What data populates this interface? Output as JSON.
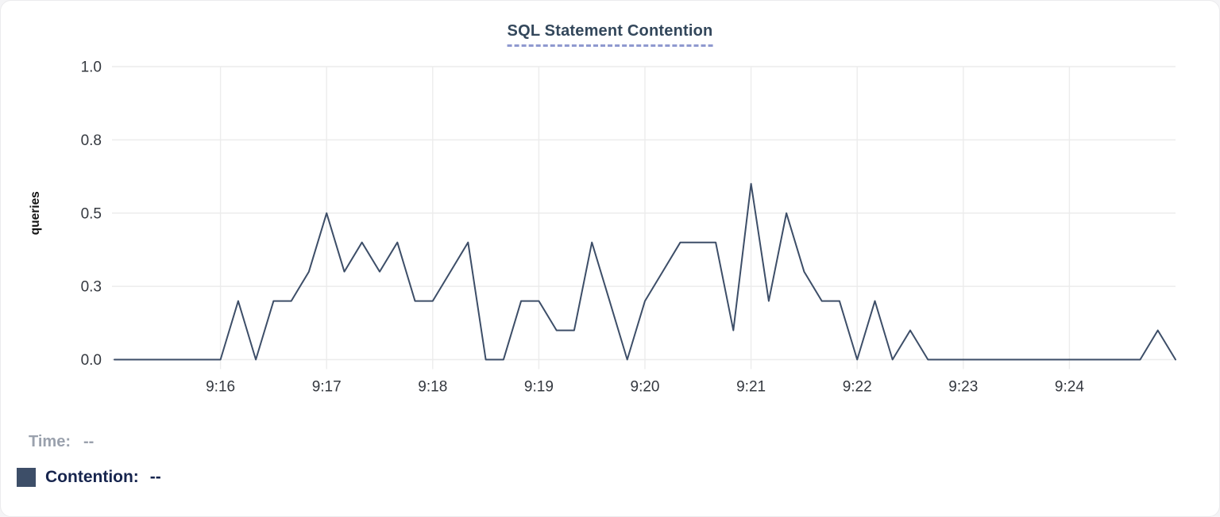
{
  "title": "SQL Statement Contention",
  "chart_data": {
    "type": "line",
    "title": "SQL Statement Contention",
    "xlabel": "",
    "ylabel": "queries",
    "ylim": [
      0,
      1.0
    ],
    "grid": true,
    "legend_position": "bottom-left",
    "y_ticks": [
      {
        "label": "0.0",
        "value": 0
      },
      {
        "label": "0.3",
        "value": 0.25
      },
      {
        "label": "0.5",
        "value": 0.5
      },
      {
        "label": "0.8",
        "value": 0.75
      },
      {
        "label": "1.0",
        "value": 1
      }
    ],
    "x_ticks": [
      {
        "label": "9:16",
        "index": 6
      },
      {
        "label": "9:17",
        "index": 12
      },
      {
        "label": "9:18",
        "index": 18
      },
      {
        "label": "9:19",
        "index": 24
      },
      {
        "label": "9:20",
        "index": 30
      },
      {
        "label": "9:21",
        "index": 36
      },
      {
        "label": "9:22",
        "index": 42
      },
      {
        "label": "9:23",
        "index": 48
      },
      {
        "label": "9:24",
        "index": 54
      }
    ],
    "x_range": [
      "9:15:00",
      "9:25:00"
    ],
    "interval_seconds": 10,
    "series": [
      {
        "name": "Contention",
        "color": "#3d4e68",
        "times": [
          "9:15:00",
          "9:15:10",
          "9:15:20",
          "9:15:30",
          "9:15:40",
          "9:15:50",
          "9:16:00",
          "9:16:10",
          "9:16:20",
          "9:16:30",
          "9:16:40",
          "9:16:50",
          "9:17:00",
          "9:17:10",
          "9:17:20",
          "9:17:30",
          "9:17:40",
          "9:17:50",
          "9:18:00",
          "9:18:10",
          "9:18:20",
          "9:18:30",
          "9:18:40",
          "9:18:50",
          "9:19:00",
          "9:19:10",
          "9:19:20",
          "9:19:30",
          "9:19:40",
          "9:19:50",
          "9:20:00",
          "9:20:10",
          "9:20:20",
          "9:20:30",
          "9:20:40",
          "9:20:50",
          "9:21:00",
          "9:21:10",
          "9:21:20",
          "9:21:30",
          "9:21:40",
          "9:21:50",
          "9:22:00",
          "9:22:10",
          "9:22:20",
          "9:22:30",
          "9:22:40",
          "9:22:50",
          "9:23:00",
          "9:23:10",
          "9:23:20",
          "9:23:30",
          "9:23:40",
          "9:23:50",
          "9:24:00",
          "9:24:10",
          "9:24:20",
          "9:24:30",
          "9:24:40",
          "9:24:50",
          "9:25:00"
        ],
        "values": [
          0,
          0,
          0,
          0,
          0,
          0,
          0,
          0.2,
          0,
          0.2,
          0.2,
          0.3,
          0.5,
          0.3,
          0.4,
          0.3,
          0.4,
          0.2,
          0.2,
          0.3,
          0.4,
          0,
          0,
          0.2,
          0.2,
          0.1,
          0.1,
          0.4,
          0.2,
          0,
          0.2,
          0.3,
          0.4,
          0.4,
          0.4,
          0.1,
          0.6,
          0.2,
          0.5,
          0.3,
          0.2,
          0.2,
          0,
          0.2,
          0,
          0.1,
          0,
          0,
          0,
          0,
          0,
          0,
          0,
          0,
          0,
          0,
          0,
          0,
          0,
          0.1,
          0
        ]
      }
    ]
  },
  "readout": {
    "time_label": "Time:",
    "time_value": "--",
    "contention_label": "Contention:",
    "contention_value": "--"
  },
  "colors": {
    "page_bg": "#f4f4f6",
    "card_bg": "#ffffff",
    "card_border": "#ebebed",
    "title_color": "#33475b",
    "title_dash": "#8f99cf",
    "line": "#3d4e68",
    "grid": "#ececec",
    "tick_text": "#34383f",
    "axis_label_text": "#111111",
    "time_text": "#9aa1ad",
    "legend_text": "#17254e",
    "swatch": "#3e4e68"
  }
}
